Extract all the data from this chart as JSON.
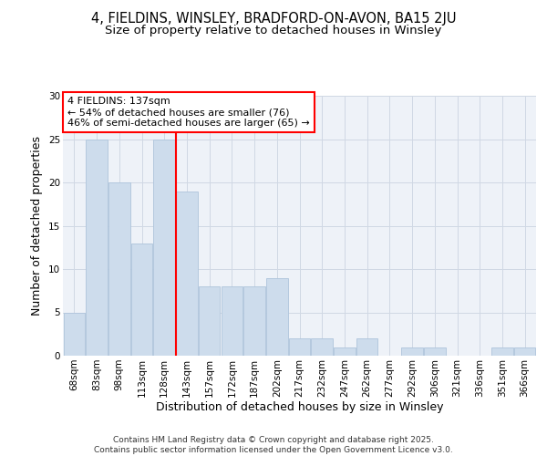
{
  "title1": "4, FIELDINS, WINSLEY, BRADFORD-ON-AVON, BA15 2JU",
  "title2": "Size of property relative to detached houses in Winsley",
  "xlabel": "Distribution of detached houses by size in Winsley",
  "ylabel": "Number of detached properties",
  "bar_labels": [
    "68sqm",
    "83sqm",
    "98sqm",
    "113sqm",
    "128sqm",
    "143sqm",
    "157sqm",
    "172sqm",
    "187sqm",
    "202sqm",
    "217sqm",
    "232sqm",
    "247sqm",
    "262sqm",
    "277sqm",
    "292sqm",
    "306sqm",
    "321sqm",
    "336sqm",
    "351sqm",
    "366sqm"
  ],
  "bar_values": [
    5,
    25,
    20,
    13,
    25,
    19,
    8,
    8,
    8,
    9,
    2,
    2,
    1,
    2,
    0,
    1,
    1,
    0,
    0,
    1,
    1
  ],
  "bar_color": "#cddcec",
  "bar_edgecolor": "#aec4db",
  "vline_x": 4.5,
  "vline_color": "red",
  "annotation_text": "4 FIELDINS: 137sqm\n← 54% of detached houses are smaller (76)\n46% of semi-detached houses are larger (65) →",
  "annotation_box_color": "white",
  "annotation_box_edgecolor": "red",
  "ylim": [
    0,
    30
  ],
  "yticks": [
    0,
    5,
    10,
    15,
    20,
    25,
    30
  ],
  "grid_color": "#d0d8e4",
  "plot_bg_color": "#eef2f8",
  "fig_bg_color": "#ffffff",
  "footer": "Contains HM Land Registry data © Crown copyright and database right 2025.\nContains public sector information licensed under the Open Government Licence v3.0.",
  "title_fontsize": 10.5,
  "subtitle_fontsize": 9.5,
  "axis_label_fontsize": 9,
  "tick_fontsize": 7.5,
  "annotation_fontsize": 8,
  "footer_fontsize": 6.5
}
